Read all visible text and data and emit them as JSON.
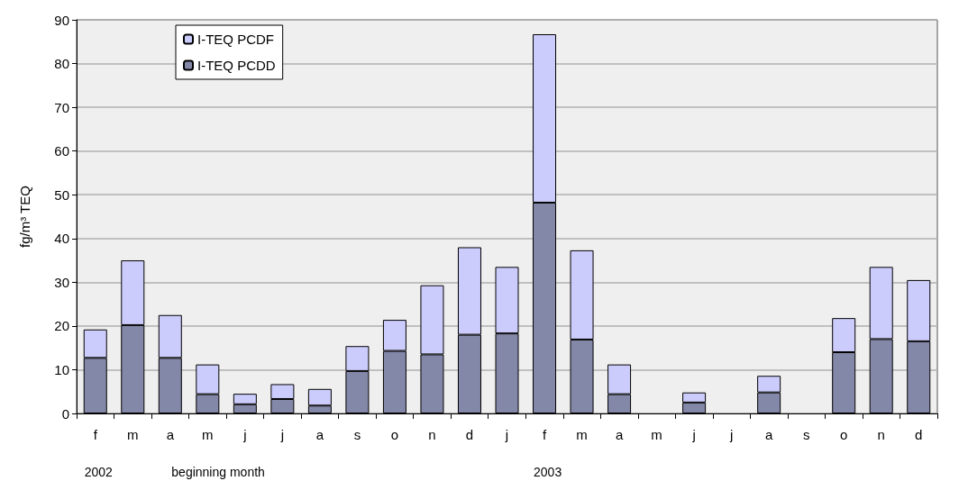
{
  "chart_data": {
    "type": "bar",
    "stacked": true,
    "ylabel": "fg/m³ TEQ",
    "categories": [
      "f",
      "m",
      "a",
      "m",
      "j",
      "j",
      "a",
      "s",
      "o",
      "n",
      "d",
      "j",
      "f",
      "m",
      "a",
      "m",
      "j",
      "j",
      "a",
      "s",
      "o",
      "n",
      "d"
    ],
    "series": [
      {
        "name": "I-TEQ PCDD",
        "color": "#8488a8",
        "values": [
          12.7,
          20.2,
          12.7,
          4.4,
          2.1,
          3.3,
          1.8,
          9.7,
          14.3,
          13.5,
          18,
          18.3,
          48.2,
          16.9,
          4.4,
          null,
          2.5,
          null,
          4.8,
          null,
          14,
          17,
          16.5
        ]
      },
      {
        "name": "I-TEQ PCDF",
        "color": "#ccccfc",
        "values": [
          6.5,
          14.8,
          9.8,
          6.8,
          2.4,
          3.4,
          3.8,
          5.7,
          7.1,
          15.8,
          20,
          15.2,
          38.5,
          20.4,
          6.8,
          null,
          2.3,
          null,
          3.8,
          null,
          7.8,
          16.5,
          14
        ]
      }
    ],
    "ylim": [
      0,
      90
    ],
    "yticks": [
      0,
      10,
      20,
      30,
      40,
      50,
      60,
      70,
      80,
      90
    ],
    "grid": "y",
    "legend": "top left",
    "annotations": [
      "2002",
      "beginning month",
      "2003"
    ]
  }
}
